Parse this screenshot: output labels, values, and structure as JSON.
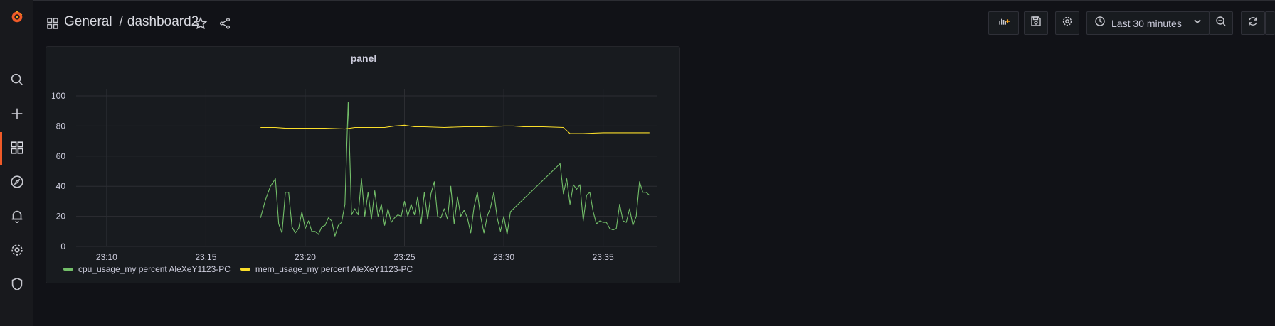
{
  "app": {
    "breadcrumb_folder": "General",
    "breadcrumb_sep": "/",
    "dashboard_title": "dashboard2"
  },
  "sidebar": {
    "items": [
      {
        "icon": "grafana-logo-icon"
      },
      {
        "icon": "search-icon"
      },
      {
        "icon": "create-plus-icon"
      },
      {
        "icon": "dashboards-grid-icon",
        "active": true
      },
      {
        "icon": "explore-compass-icon"
      },
      {
        "icon": "alerting-bell-icon"
      },
      {
        "icon": "configuration-gear-icon"
      },
      {
        "icon": "server-admin-shield-icon"
      }
    ]
  },
  "toolbar": {
    "time_range_label": "Last 30 minutes",
    "icons": [
      "add-panel-icon",
      "save-dashboard-icon",
      "dashboard-settings-icon",
      "clock-icon",
      "chevron-down-icon",
      "zoom-out-icon",
      "refresh-icon"
    ]
  },
  "colors": {
    "accent": "#f05a28",
    "cpu_series": "#73bf69",
    "mem_series": "#fade2a",
    "background": "#111217",
    "panel_bg": "#181b1f"
  },
  "panel": {
    "title": "panel"
  },
  "chart_data": {
    "type": "line",
    "title": "panel",
    "xlabel": "",
    "ylabel": "",
    "x_ticks": [
      "23:10",
      "23:15",
      "23:20",
      "23:25",
      "23:30",
      "23:35"
    ],
    "x_range_minutes": [
      1388.25,
      1417.7
    ],
    "y_ticks": [
      0,
      20,
      40,
      60,
      80,
      100
    ],
    "ylim": [
      0,
      100
    ],
    "grid": true,
    "legend_position": "bottom-left",
    "series": [
      {
        "name": "cpu_usage_my percent AleXeY1123-PC",
        "color": "#73bf69",
        "points": [
          [
            "23:17:45",
            19
          ],
          [
            "23:18:00",
            31
          ],
          [
            "23:18:15",
            40
          ],
          [
            "23:18:30",
            45
          ],
          [
            "23:18:40",
            15
          ],
          [
            "23:18:50",
            9
          ],
          [
            "23:19:00",
            36
          ],
          [
            "23:19:10",
            36
          ],
          [
            "23:19:20",
            13
          ],
          [
            "23:19:30",
            9
          ],
          [
            "23:19:40",
            12
          ],
          [
            "23:19:50",
            23
          ],
          [
            "23:20:00",
            12
          ],
          [
            "23:20:10",
            17
          ],
          [
            "23:20:20",
            10
          ],
          [
            "23:20:30",
            10
          ],
          [
            "23:20:40",
            8
          ],
          [
            "23:20:50",
            13
          ],
          [
            "23:21:00",
            14
          ],
          [
            "23:21:10",
            19
          ],
          [
            "23:21:20",
            17
          ],
          [
            "23:21:30",
            7
          ],
          [
            "23:21:40",
            14
          ],
          [
            "23:21:50",
            16
          ],
          [
            "23:22:00",
            28
          ],
          [
            "23:22:10",
            96
          ],
          [
            "23:22:20",
            21
          ],
          [
            "23:22:30",
            25
          ],
          [
            "23:22:40",
            21
          ],
          [
            "23:22:50",
            45
          ],
          [
            "23:23:00",
            20
          ],
          [
            "23:23:10",
            36
          ],
          [
            "23:23:20",
            18
          ],
          [
            "23:23:30",
            37
          ],
          [
            "23:23:40",
            20
          ],
          [
            "23:23:50",
            28
          ],
          [
            "23:24:00",
            14
          ],
          [
            "23:24:10",
            25
          ],
          [
            "23:24:20",
            16
          ],
          [
            "23:24:30",
            19
          ],
          [
            "23:24:40",
            21
          ],
          [
            "23:24:50",
            20
          ],
          [
            "23:25:00",
            30
          ],
          [
            "23:25:10",
            20
          ],
          [
            "23:25:20",
            28
          ],
          [
            "23:25:30",
            21
          ],
          [
            "23:25:40",
            33
          ],
          [
            "23:25:50",
            15
          ],
          [
            "23:26:00",
            36
          ],
          [
            "23:26:10",
            18
          ],
          [
            "23:26:20",
            35
          ],
          [
            "23:26:30",
            43
          ],
          [
            "23:26:40",
            20
          ],
          [
            "23:26:50",
            19
          ],
          [
            "23:27:00",
            25
          ],
          [
            "23:27:10",
            18
          ],
          [
            "23:27:20",
            40
          ],
          [
            "23:27:30",
            15
          ],
          [
            "23:27:40",
            33
          ],
          [
            "23:27:50",
            20
          ],
          [
            "23:28:00",
            24
          ],
          [
            "23:28:10",
            19
          ],
          [
            "23:28:20",
            9
          ],
          [
            "23:28:30",
            26
          ],
          [
            "23:28:40",
            36
          ],
          [
            "23:28:50",
            20
          ],
          [
            "23:29:00",
            9
          ],
          [
            "23:29:10",
            20
          ],
          [
            "23:29:20",
            26
          ],
          [
            "23:29:30",
            36
          ],
          [
            "23:29:40",
            19
          ],
          [
            "23:29:50",
            10
          ],
          [
            "23:30:00",
            20
          ],
          [
            "23:30:10",
            8
          ],
          [
            "23:30:20",
            23
          ],
          [
            "23:32:50",
            55
          ],
          [
            "23:33:00",
            35
          ],
          [
            "23:33:10",
            45
          ],
          [
            "23:33:20",
            28
          ],
          [
            "23:33:30",
            41
          ],
          [
            "23:33:40",
            38
          ],
          [
            "23:33:50",
            41
          ],
          [
            "23:34:00",
            17
          ],
          [
            "23:34:10",
            34
          ],
          [
            "23:34:20",
            36
          ],
          [
            "23:34:30",
            23
          ],
          [
            "23:34:40",
            15
          ],
          [
            "23:34:50",
            17
          ],
          [
            "23:35:00",
            16
          ],
          [
            "23:35:10",
            16
          ],
          [
            "23:35:20",
            12
          ],
          [
            "23:35:30",
            11
          ],
          [
            "23:35:40",
            12
          ],
          [
            "23:35:50",
            28
          ],
          [
            "23:36:00",
            17
          ],
          [
            "23:36:10",
            16
          ],
          [
            "23:36:20",
            25
          ],
          [
            "23:36:30",
            14
          ],
          [
            "23:36:40",
            20
          ],
          [
            "23:36:50",
            43
          ],
          [
            "23:37:00",
            36
          ],
          [
            "23:37:10",
            36
          ],
          [
            "23:37:20",
            34
          ]
        ]
      },
      {
        "name": "mem_usage_my percent AleXeY1123-PC",
        "color": "#fade2a",
        "points": [
          [
            "23:17:45",
            79
          ],
          [
            "23:18:30",
            79
          ],
          [
            "23:19:00",
            78.5
          ],
          [
            "23:20:00",
            78.5
          ],
          [
            "23:21:00",
            78.5
          ],
          [
            "23:22:00",
            78
          ],
          [
            "23:22:30",
            79
          ],
          [
            "23:23:00",
            79
          ],
          [
            "23:24:00",
            79
          ],
          [
            "23:24:30",
            80
          ],
          [
            "23:25:00",
            80.5
          ],
          [
            "23:25:30",
            79.5
          ],
          [
            "23:26:00",
            79.5
          ],
          [
            "23:27:00",
            79
          ],
          [
            "23:28:00",
            79.5
          ],
          [
            "23:29:00",
            79.5
          ],
          [
            "23:30:00",
            80
          ],
          [
            "23:30:30",
            80
          ],
          [
            "23:31:00",
            79.5
          ],
          [
            "23:32:00",
            79.5
          ],
          [
            "23:33:00",
            79
          ],
          [
            "23:33:20",
            75
          ],
          [
            "23:34:00",
            75
          ],
          [
            "23:35:00",
            75.5
          ],
          [
            "23:36:00",
            75.5
          ],
          [
            "23:37:20",
            75.5
          ]
        ]
      }
    ]
  }
}
